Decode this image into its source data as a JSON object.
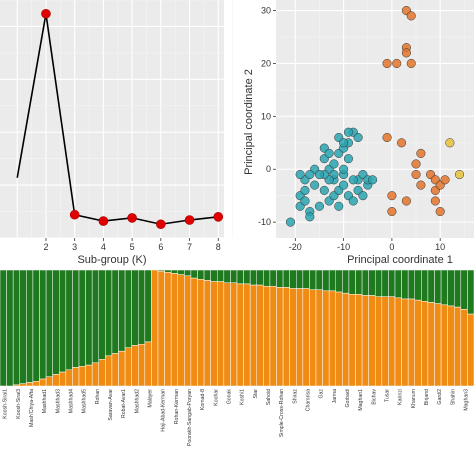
{
  "chart_data": [
    {
      "type": "line",
      "title": "",
      "xlabel": "Sub-group (K)",
      "ylabel": "",
      "x": [
        1,
        2,
        3,
        4,
        5,
        6,
        7,
        8
      ],
      "y": [
        57,
        212,
        22,
        16,
        19,
        13,
        17,
        20
      ],
      "xlim": [
        0.4,
        8.2
      ],
      "ylim": [
        0,
        225
      ],
      "xticks": [
        "2",
        "3",
        "4",
        "5",
        "6",
        "7",
        "8"
      ],
      "point_color": "#e00000",
      "grid": true,
      "background": "#ebebeb"
    },
    {
      "type": "scatter",
      "title": "",
      "xlabel": "Principal coordinate 1",
      "ylabel": "Principal coordinate 2",
      "xlim": [
        -24,
        17
      ],
      "ylim": [
        -13,
        32
      ],
      "xticks": [
        "-20",
        "-10",
        "0",
        "10"
      ],
      "yticks": [
        "-10",
        "0",
        "10",
        "20",
        "30"
      ],
      "grid": true,
      "background": "#ebebeb",
      "series": [
        {
          "color": "#2aa5b0",
          "points": [
            [
              -21,
              -10
            ],
            [
              -19,
              -7
            ],
            [
              -19,
              -5
            ],
            [
              -18,
              -6
            ],
            [
              -17,
              -8
            ],
            [
              -18,
              -4
            ],
            [
              -16,
              -3
            ],
            [
              -17,
              -9
            ],
            [
              -15,
              -7
            ],
            [
              -18,
              -2
            ],
            [
              -19,
              -1
            ],
            [
              -14,
              -4
            ],
            [
              -13,
              -6
            ],
            [
              -12,
              -5
            ],
            [
              -12,
              -2
            ],
            [
              -11,
              -4
            ],
            [
              -10,
              -3
            ],
            [
              -10,
              -1
            ],
            [
              -9,
              -5
            ],
            [
              -11,
              -7
            ],
            [
              -8,
              -6
            ],
            [
              -7,
              -4
            ],
            [
              -6,
              -5
            ],
            [
              -5,
              -3
            ],
            [
              -7,
              -2
            ],
            [
              -14,
              2
            ],
            [
              -13,
              0
            ],
            [
              -12,
              1
            ],
            [
              -11,
              3
            ],
            [
              -10,
              4
            ],
            [
              -12,
              -1
            ],
            [
              -13,
              -2
            ],
            [
              -14,
              -1
            ],
            [
              -10,
              0
            ],
            [
              -9,
              2
            ],
            [
              -8,
              -2
            ],
            [
              -9,
              5
            ],
            [
              -8,
              7
            ],
            [
              -7,
              6
            ],
            [
              -6,
              -1
            ],
            [
              -5,
              -2
            ],
            [
              -4,
              -2
            ],
            [
              -16,
              0
            ],
            [
              -17,
              -1
            ],
            [
              -15,
              -1
            ],
            [
              -14,
              4
            ],
            [
              -13,
              3
            ],
            [
              -11,
              6
            ],
            [
              -10,
              5
            ],
            [
              -9,
              7
            ]
          ]
        },
        {
          "color": "#e3742c",
          "points": [
            [
              3,
              30
            ],
            [
              4,
              29
            ],
            [
              3,
              23
            ],
            [
              3,
              22
            ],
            [
              4,
              20
            ],
            [
              1,
              20
            ],
            [
              -1,
              20
            ],
            [
              -1,
              6
            ],
            [
              2,
              5
            ],
            [
              6,
              3
            ],
            [
              5,
              1
            ],
            [
              5,
              -1
            ],
            [
              6,
              -3
            ],
            [
              8,
              -1
            ],
            [
              9,
              -2
            ],
            [
              9,
              -4
            ],
            [
              10,
              -3
            ],
            [
              11,
              -2
            ],
            [
              9,
              -6
            ],
            [
              3,
              -6
            ],
            [
              0,
              -8
            ],
            [
              0,
              -5
            ],
            [
              10,
              -8
            ]
          ]
        },
        {
          "color": "#e8c23a",
          "points": [
            [
              12,
              5
            ],
            [
              14,
              -1
            ]
          ]
        }
      ]
    },
    {
      "type": "bar",
      "title": "",
      "stacked": true,
      "ylim": [
        0,
        1
      ],
      "series": [
        {
          "name": "",
          "color": "#1f7a1f"
        },
        {
          "name": "",
          "color": "#f08c14"
        }
      ],
      "categories": [
        "Koosh-Sirai1",
        "Koosh-Sirai3",
        "Mash'Chiya-Afta",
        "Mashhad1",
        "Mashhad3",
        "Mashhad4",
        "Mashhad5",
        "Rohan",
        "Saravan-Avar",
        "Robat-Avar1",
        "Mashhad2",
        "Malayer",
        "Haji-Abad-Kerman",
        "Rohan-Kerman",
        "Poorakh-Sangab-Poryan",
        "Komad-8",
        "Koohar",
        "Gonak",
        "Koshi1",
        "Star",
        "Sahoid",
        "Simple-Cross-Rohan",
        "Shiraz",
        "Chamrisa",
        "Gaz",
        "Jarma",
        "Gorbadi",
        "Maghan1",
        "Bichav",
        "Tusar",
        "Karinzi",
        "Khanum",
        "Birjand",
        "Gardi2",
        "Shahin",
        "Maghan3",
        "Maghan2",
        "Takhti",
        "Khafi",
        "Alborz",
        "Koi",
        "Ahid",
        "Bahar",
        "Gavand",
        "Darjan",
        "Pelvan",
        "Parang",
        "Kaish",
        "Pohrasi",
        "Neishabour",
        "Konar",
        "Khatar1",
        "Ghom",
        "Zaire",
        "MV11",
        "Monvand",
        "Gascoghe",
        "Ghaz",
        "Olfengha",
        "Lisani",
        "Saipan",
        "Kerman",
        "Kaito",
        "Aband",
        "Shazdar",
        "Fars",
        "Khoda",
        "Kaweh",
        "Bem",
        "Bahrain",
        "Mehmas",
        "Mardedeh"
      ],
      "orange_fraction": [
        0.0,
        0.0,
        0.01,
        0.02,
        0.03,
        0.04,
        0.06,
        0.08,
        0.1,
        0.12,
        0.14,
        0.16,
        0.17,
        0.18,
        0.2,
        0.23,
        0.26,
        0.28,
        0.3,
        0.33,
        0.35,
        0.36,
        0.38,
        1.0,
        0.99,
        0.98,
        0.97,
        0.96,
        0.95,
        0.93,
        0.92,
        0.91,
        0.9,
        0.9,
        0.89,
        0.89,
        0.88,
        0.88,
        0.87,
        0.87,
        0.86,
        0.86,
        0.85,
        0.85,
        0.84,
        0.84,
        0.84,
        0.83,
        0.83,
        0.82,
        0.82,
        0.81,
        0.8,
        0.79,
        0.79,
        0.78,
        0.78,
        0.77,
        0.77,
        0.77,
        0.76,
        0.75,
        0.75,
        0.74,
        0.73,
        0.72,
        0.71,
        0.7,
        0.69,
        0.68,
        0.66,
        0.62
      ]
    }
  ]
}
